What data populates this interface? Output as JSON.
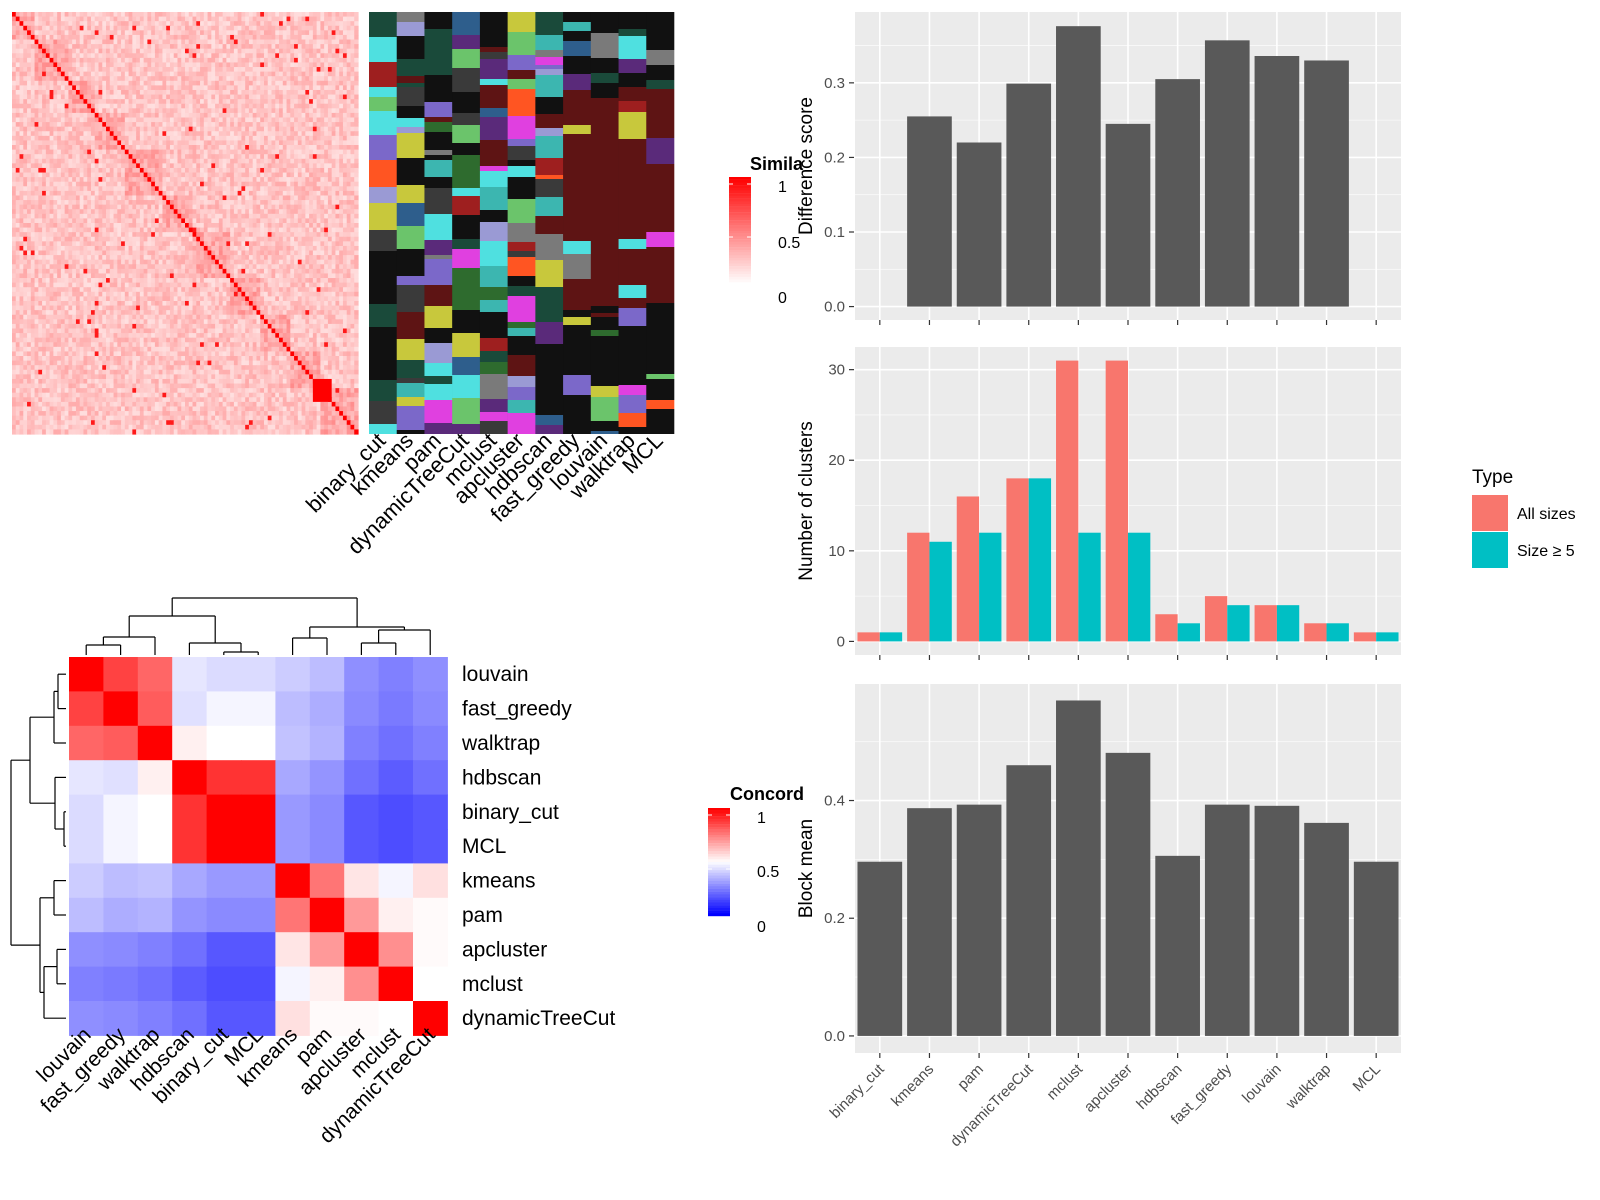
{
  "colors": {
    "panel_bg": "#EBEBEB",
    "grid": "#FFFFFF",
    "bar_gray": "#595959",
    "all_sizes": "#F8766D",
    "size_ge5": "#00BFC4",
    "heat_low": "#FFFFFF",
    "heat_high": "#FF0000",
    "conc_low": "#0000FF",
    "conc_mid": "#FFFFFF",
    "conc_high": "#FF0000",
    "class_bg": "#111111"
  },
  "methods_order": [
    "binary_cut",
    "kmeans",
    "pam",
    "dynamicTreeCut",
    "mclust",
    "apcluster",
    "hdbscan",
    "fast_greedy",
    "louvain",
    "walktrap",
    "MCL"
  ],
  "similarity_heatmap": {
    "legend_title": "Simila",
    "legend_ticks": [
      "1",
      "0.5",
      "0"
    ],
    "column_labels": [
      "binary_cut",
      "kmeans",
      "pam",
      "dynamicTreeCut",
      "mclust",
      "apcluster",
      "hdbscan",
      "fast_greedy",
      "louvain",
      "walktrap",
      "MCL"
    ]
  },
  "concordance_heatmap": {
    "legend_title": "Concord",
    "legend_ticks": [
      "1",
      "0.5",
      "0"
    ],
    "row_labels": [
      "louvain",
      "fast_greedy",
      "walktrap",
      "hdbscan",
      "binary_cut",
      "MCL",
      "kmeans",
      "pam",
      "apcluster",
      "mclust",
      "dynamicTreeCut"
    ],
    "col_labels": [
      "louvain",
      "fast_greedy",
      "walktrap",
      "hdbscan",
      "binary_cut",
      "MCL",
      "kmeans",
      "pam",
      "apcluster",
      "mclust",
      "dynamicTreeCut"
    ],
    "matrix": [
      [
        1.0,
        0.87,
        0.8,
        0.45,
        0.43,
        0.43,
        0.4,
        0.37,
        0.28,
        0.25,
        0.28
      ],
      [
        0.87,
        1.0,
        0.82,
        0.44,
        0.48,
        0.48,
        0.37,
        0.34,
        0.27,
        0.24,
        0.27
      ],
      [
        0.8,
        0.82,
        1.0,
        0.53,
        0.5,
        0.5,
        0.38,
        0.35,
        0.25,
        0.22,
        0.25
      ],
      [
        0.45,
        0.44,
        0.53,
        1.0,
        0.9,
        0.9,
        0.33,
        0.29,
        0.22,
        0.18,
        0.22
      ],
      [
        0.43,
        0.48,
        0.5,
        0.9,
        1.0,
        1.0,
        0.3,
        0.27,
        0.17,
        0.15,
        0.17
      ],
      [
        0.43,
        0.48,
        0.5,
        0.9,
        1.0,
        1.0,
        0.3,
        0.27,
        0.17,
        0.15,
        0.17
      ],
      [
        0.4,
        0.37,
        0.38,
        0.33,
        0.3,
        0.3,
        1.0,
        0.77,
        0.55,
        0.48,
        0.56
      ],
      [
        0.37,
        0.34,
        0.35,
        0.29,
        0.27,
        0.27,
        0.77,
        1.0,
        0.7,
        0.53,
        0.51
      ],
      [
        0.28,
        0.27,
        0.25,
        0.22,
        0.17,
        0.17,
        0.55,
        0.7,
        1.0,
        0.72,
        0.51
      ],
      [
        0.25,
        0.24,
        0.22,
        0.18,
        0.15,
        0.15,
        0.48,
        0.53,
        0.72,
        1.0,
        0.5
      ],
      [
        0.28,
        0.27,
        0.25,
        0.22,
        0.17,
        0.17,
        0.56,
        0.51,
        0.51,
        0.5,
        1.0
      ]
    ]
  },
  "chart_data": [
    {
      "type": "bar",
      "panel": "top",
      "categories": [
        "binary_cut",
        "kmeans",
        "pam",
        "dynamicTreeCut",
        "mclust",
        "apcluster",
        "hdbscan",
        "fast_greedy",
        "louvain",
        "walktrap",
        "MCL"
      ],
      "values": [
        0,
        0.255,
        0.22,
        0.299,
        0.376,
        0.245,
        0.305,
        0.357,
        0.336,
        0.33,
        0
      ],
      "ylabel": "Difference score",
      "ylim": [
        -0.018,
        0.395
      ],
      "yticks": [
        "0.0",
        "0.1",
        "0.2",
        "0.3"
      ],
      "grid": true
    },
    {
      "type": "bar",
      "panel": "middle",
      "categories": [
        "binary_cut",
        "kmeans",
        "pam",
        "dynamicTreeCut",
        "mclust",
        "apcluster",
        "hdbscan",
        "fast_greedy",
        "louvain",
        "walktrap",
        "MCL"
      ],
      "series": [
        {
          "name": "All sizes",
          "values": [
            1,
            12,
            16,
            18,
            31,
            31,
            3,
            5,
            4,
            2,
            1
          ]
        },
        {
          "name": "Size ≥ 5",
          "values": [
            1,
            11,
            12,
            18,
            12,
            12,
            2,
            4,
            4,
            2,
            1
          ]
        }
      ],
      "ylabel": "Number of clusters",
      "ylim": [
        -1.5,
        32.5
      ],
      "yticks": [
        "0",
        "10",
        "20",
        "30"
      ],
      "legend_title": "Type",
      "legend_position": "right",
      "grid": true
    },
    {
      "type": "bar",
      "panel": "bottom",
      "categories": [
        "binary_cut",
        "kmeans",
        "pam",
        "dynamicTreeCut",
        "mclust",
        "apcluster",
        "hdbscan",
        "fast_greedy",
        "louvain",
        "walktrap",
        "MCL"
      ],
      "values": [
        0.296,
        0.387,
        0.393,
        0.46,
        0.57,
        0.481,
        0.306,
        0.393,
        0.391,
        0.362,
        0.296
      ],
      "ylabel": "Block mean",
      "ylim": [
        -0.029,
        0.598
      ],
      "yticks": [
        "0.0",
        "0.2",
        "0.4"
      ],
      "grid": true
    }
  ]
}
